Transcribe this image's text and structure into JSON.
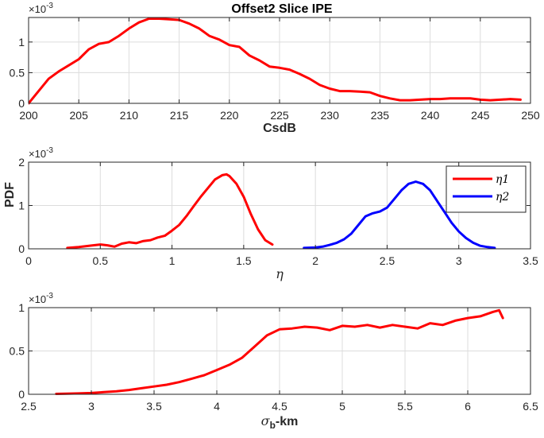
{
  "figure": {
    "title": "Offset2 Slice IPE",
    "ylabel_shared": "PDF"
  },
  "chart_data": [
    {
      "type": "line",
      "title": "Offset2 Slice IPE",
      "xlabel": "CsdB",
      "ylabel": "",
      "exponent_label": "×10^-3",
      "exponent_base": "×10",
      "exponent_power": "-3",
      "xlim": [
        200,
        250
      ],
      "ylim": [
        0,
        1.4
      ],
      "xticks": [
        200,
        205,
        210,
        215,
        220,
        225,
        230,
        235,
        240,
        245,
        250
      ],
      "yticks": [
        0,
        0.5,
        1
      ],
      "grid": true,
      "series": [
        {
          "color": "#ff0000",
          "x": [
            200,
            201,
            202,
            203,
            204,
            205,
            206,
            207,
            208,
            209,
            210,
            211,
            212,
            213,
            214,
            215,
            216,
            217,
            218,
            219,
            220,
            221,
            222,
            223,
            224,
            225,
            226,
            227,
            228,
            229,
            230,
            231,
            232,
            233,
            234,
            235,
            236,
            237,
            238,
            239,
            240,
            241,
            242,
            243,
            244,
            245,
            246,
            247,
            248,
            249
          ],
          "y": [
            0.0,
            0.2,
            0.4,
            0.52,
            0.62,
            0.72,
            0.88,
            0.97,
            1.0,
            1.1,
            1.22,
            1.32,
            1.38,
            1.38,
            1.37,
            1.36,
            1.3,
            1.22,
            1.1,
            1.04,
            0.95,
            0.92,
            0.78,
            0.7,
            0.6,
            0.58,
            0.55,
            0.48,
            0.4,
            0.3,
            0.24,
            0.2,
            0.2,
            0.19,
            0.18,
            0.12,
            0.08,
            0.05,
            0.05,
            0.06,
            0.07,
            0.07,
            0.08,
            0.08,
            0.08,
            0.06,
            0.05,
            0.06,
            0.07,
            0.06
          ]
        }
      ]
    },
    {
      "type": "line",
      "title": "",
      "xlabel": "η",
      "ylabel": "PDF",
      "exponent_label": "×10^-3",
      "exponent_base": "×10",
      "exponent_power": "-3",
      "xlim": [
        0,
        3.5
      ],
      "ylim": [
        0,
        2
      ],
      "xticks": [
        0,
        0.5,
        1,
        1.5,
        2,
        2.5,
        3,
        3.5
      ],
      "yticks": [
        0,
        1,
        2
      ],
      "grid": true,
      "legend_position": "top-right",
      "series": [
        {
          "name": "η1",
          "color": "#ff0000",
          "x": [
            0.27,
            0.35,
            0.45,
            0.5,
            0.55,
            0.6,
            0.65,
            0.7,
            0.75,
            0.8,
            0.85,
            0.9,
            0.95,
            1.0,
            1.05,
            1.1,
            1.15,
            1.2,
            1.25,
            1.3,
            1.35,
            1.38,
            1.4,
            1.45,
            1.5,
            1.55,
            1.6,
            1.65,
            1.7
          ],
          "y": [
            0.02,
            0.04,
            0.08,
            0.1,
            0.08,
            0.05,
            0.12,
            0.15,
            0.13,
            0.18,
            0.2,
            0.26,
            0.3,
            0.42,
            0.55,
            0.75,
            0.98,
            1.2,
            1.4,
            1.6,
            1.7,
            1.72,
            1.68,
            1.5,
            1.2,
            0.8,
            0.45,
            0.2,
            0.1
          ]
        },
        {
          "name": "η2",
          "color": "#0000ff",
          "x": [
            1.92,
            2.0,
            2.05,
            2.1,
            2.15,
            2.2,
            2.25,
            2.3,
            2.35,
            2.4,
            2.45,
            2.5,
            2.55,
            2.6,
            2.65,
            2.7,
            2.75,
            2.8,
            2.85,
            2.9,
            2.95,
            3.0,
            3.05,
            3.1,
            3.15,
            3.2,
            3.25
          ],
          "y": [
            0.02,
            0.03,
            0.05,
            0.09,
            0.14,
            0.22,
            0.35,
            0.55,
            0.75,
            0.82,
            0.86,
            0.95,
            1.15,
            1.35,
            1.5,
            1.55,
            1.5,
            1.35,
            1.1,
            0.85,
            0.6,
            0.4,
            0.25,
            0.14,
            0.07,
            0.04,
            0.02
          ]
        }
      ]
    },
    {
      "type": "line",
      "title": "",
      "xlabel": "σb-km",
      "xlabel_symbol": "σ",
      "xlabel_subscript": "b",
      "xlabel_suffix": "-km",
      "ylabel": "",
      "exponent_label": "×10^-3",
      "exponent_base": "×10",
      "exponent_power": "-3",
      "xlim": [
        2.5,
        6.5
      ],
      "ylim": [
        0,
        1
      ],
      "xticks": [
        2.5,
        3,
        3.5,
        4,
        4.5,
        5,
        5.5,
        6,
        6.5
      ],
      "yticks": [
        0,
        0.5,
        1
      ],
      "grid": true,
      "series": [
        {
          "color": "#ff0000",
          "x": [
            2.72,
            2.8,
            2.9,
            3.0,
            3.1,
            3.2,
            3.3,
            3.4,
            3.5,
            3.6,
            3.7,
            3.8,
            3.9,
            4.0,
            4.1,
            4.2,
            4.3,
            4.4,
            4.5,
            4.6,
            4.7,
            4.8,
            4.9,
            5.0,
            5.1,
            5.2,
            5.3,
            5.4,
            5.5,
            5.6,
            5.7,
            5.8,
            5.9,
            6.0,
            6.1,
            6.2,
            6.25,
            6.28
          ],
          "y": [
            0.005,
            0.006,
            0.01,
            0.015,
            0.025,
            0.035,
            0.05,
            0.07,
            0.09,
            0.11,
            0.14,
            0.18,
            0.22,
            0.28,
            0.34,
            0.42,
            0.55,
            0.68,
            0.75,
            0.76,
            0.78,
            0.77,
            0.74,
            0.79,
            0.78,
            0.8,
            0.77,
            0.8,
            0.78,
            0.76,
            0.82,
            0.8,
            0.85,
            0.88,
            0.9,
            0.95,
            0.97,
            0.88
          ]
        }
      ]
    }
  ]
}
